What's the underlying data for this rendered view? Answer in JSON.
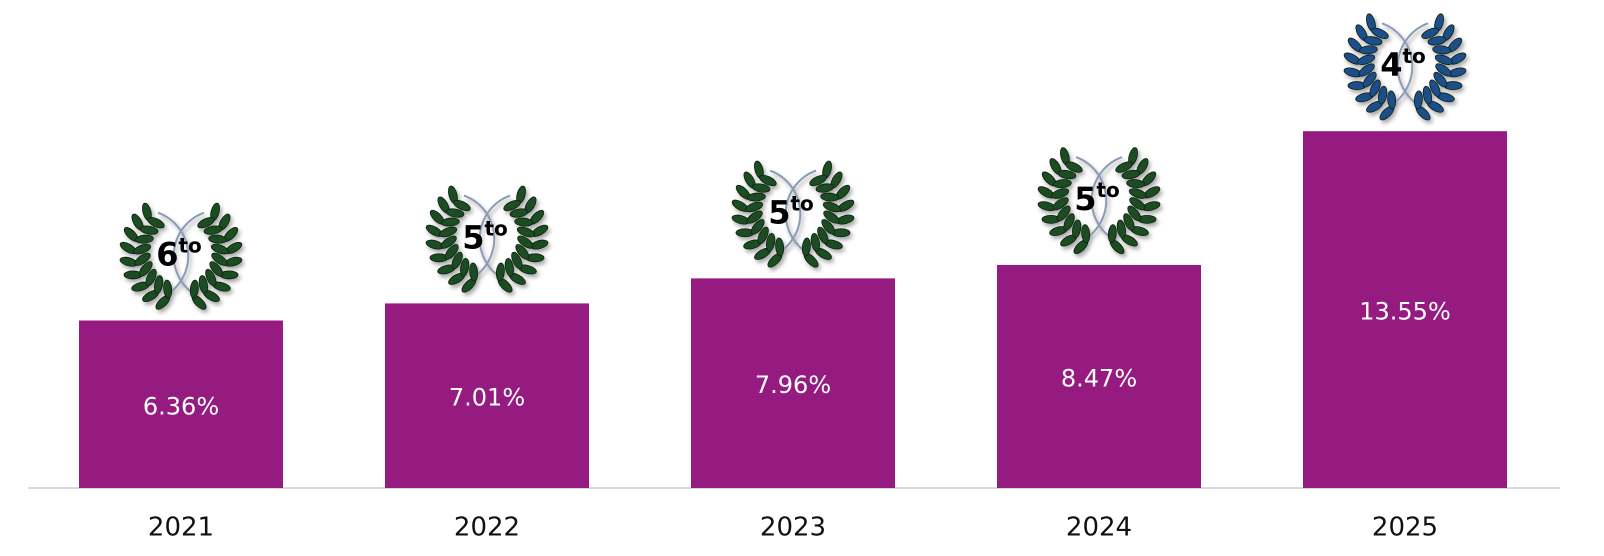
{
  "chart_data": {
    "type": "bar",
    "categories": [
      "2021",
      "2022",
      "2023",
      "2024",
      "2025"
    ],
    "values": [
      6.36,
      7.01,
      7.96,
      8.47,
      13.55
    ],
    "value_labels": [
      "6.36%",
      "7.01%",
      "7.96%",
      "8.47%",
      "13.55%"
    ],
    "color": "#951b81",
    "ylim": [
      0,
      15
    ],
    "ranks": [
      {
        "number": "6",
        "suffix": "to",
        "color": "#1f4d22"
      },
      {
        "number": "5",
        "suffix": "to",
        "color": "#1f4d22"
      },
      {
        "number": "5",
        "suffix": "to",
        "color": "#1f4d22"
      },
      {
        "number": "5",
        "suffix": "to",
        "color": "#1f4d22"
      },
      {
        "number": "4",
        "suffix": "to",
        "color": "#1f4f8a"
      }
    ]
  }
}
